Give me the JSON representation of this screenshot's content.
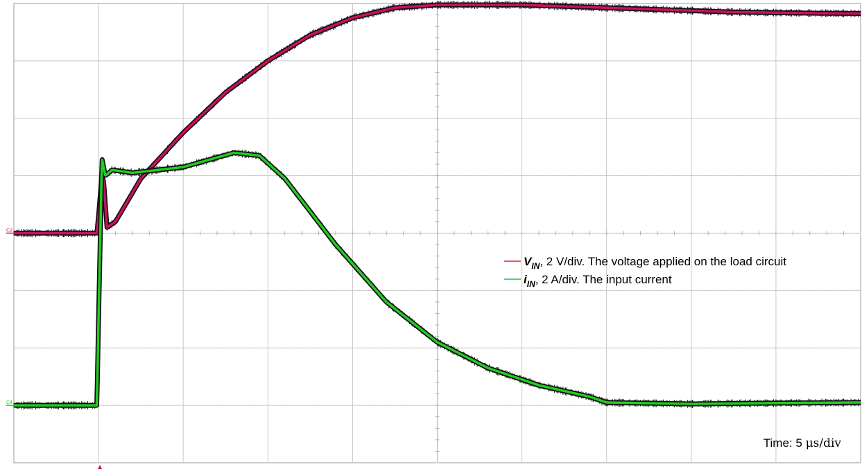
{
  "chart_data": {
    "type": "line",
    "title": "",
    "xlabel": "",
    "ylabel": "",
    "grid": true,
    "x_divisions": 10,
    "y_divisions": 8,
    "legend_placement": "right-middle",
    "annotation": {
      "prefix": "Time: 5 ",
      "unit": "μs/div"
    },
    "colors": {
      "vin": "#cc1060",
      "iin": "#22cc22",
      "outline": "#111111",
      "grid": "#c8c8c8",
      "legend_vin": "#e02020",
      "legend_iin": "#22bb44"
    },
    "channel_markers": {
      "c2": "C2",
      "c4": "C4"
    },
    "series": [
      {
        "id": "vin",
        "symbol": "V",
        "subscript": "IN",
        "legend_rest": ", 2 V/div. The voltage applied on the load circuit",
        "scale": "2 V/div",
        "unit": "V",
        "x_us": [
          -10,
          -5.1,
          -5,
          -4.8,
          -4.7,
          -4.5,
          -4.0,
          -2.5,
          0,
          2.5,
          5,
          7.5,
          10,
          12.5,
          15,
          17.5,
          20,
          22.5,
          25,
          27.5,
          30,
          32.5,
          35,
          37.5,
          40
        ],
        "values": [
          0,
          0,
          0.6,
          2.0,
          1.8,
          0.2,
          0.4,
          1.9,
          3.5,
          4.9,
          6.0,
          6.9,
          7.5,
          7.85,
          7.95,
          7.95,
          7.95,
          7.9,
          7.85,
          7.8,
          7.75,
          7.7,
          7.68,
          7.66,
          7.65
        ]
      },
      {
        "id": "iin",
        "symbol": "i",
        "subscript": "IN",
        "legend_rest": ", 2 A/div. The input current",
        "scale": "2 A/div",
        "unit": "A",
        "x_us": [
          -10,
          -5.1,
          -5.0,
          -4.8,
          -4.6,
          -4.2,
          -3,
          0,
          3,
          4.5,
          6,
          9,
          12,
          15,
          18,
          21,
          24,
          25,
          30,
          35,
          40
        ],
        "values": [
          0,
          0,
          3.0,
          8.6,
          8.0,
          8.2,
          8.1,
          8.3,
          8.8,
          8.7,
          7.9,
          5.6,
          3.6,
          2.2,
          1.3,
          0.7,
          0.3,
          0.1,
          0.05,
          0.08,
          0.1
        ]
      }
    ]
  }
}
